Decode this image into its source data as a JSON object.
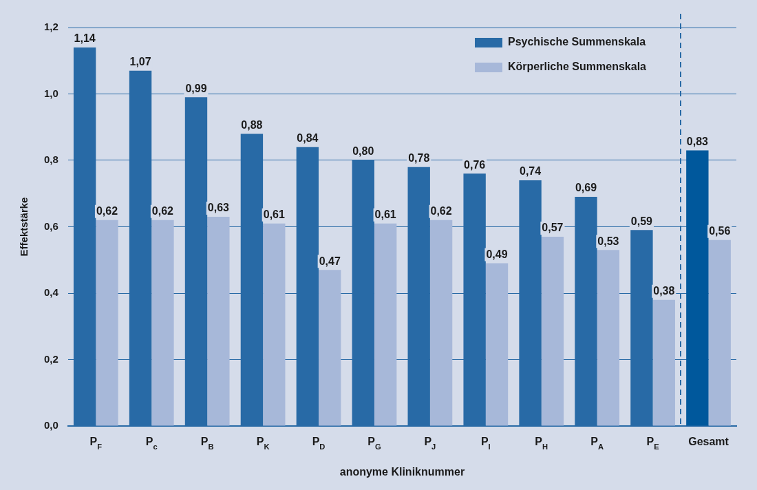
{
  "chart_data": {
    "type": "bar",
    "xlabel": "anonyme Kliniknummer",
    "ylabel": "Effektstärke",
    "categories": [
      "P$_{F}$",
      "P$_{c}$",
      "P$_{B}$",
      "P$_{K}$",
      "P$_{D}$",
      "P$_{G}$",
      "P$_{J}$",
      "P$_{I}$",
      "P$_{H}$",
      "P$_{A}$",
      "P$_{E}$",
      "Gesamt"
    ],
    "series": [
      {
        "name": "Psychische Summenskala",
        "color": "#286aa6",
        "colors": [
          "#286aa6",
          "#286aa6",
          "#286aa6",
          "#286aa6",
          "#286aa6",
          "#286aa6",
          "#286aa6",
          "#286aa6",
          "#286aa6",
          "#286aa6",
          "#286aa6",
          "#00589c"
        ],
        "values": [
          1.14,
          1.07,
          0.99,
          0.88,
          0.84,
          0.8,
          0.78,
          0.76,
          0.74,
          0.69,
          0.59,
          0.83
        ],
        "value_labels": [
          "1,14",
          "1,07",
          "0,99",
          "0,88",
          "0,84",
          "0,80",
          "0,78",
          "0,76",
          "0,74",
          "0,69",
          "0,59",
          "0,83"
        ]
      },
      {
        "name": "Körperliche Summenskala",
        "color": "#a7b8d9",
        "values": [
          0.62,
          0.62,
          0.63,
          0.61,
          0.47,
          0.61,
          0.62,
          0.49,
          0.57,
          0.53,
          0.38,
          0.56
        ],
        "value_labels": [
          "0,62",
          "0,62",
          "0,63",
          "0,61",
          "0,47",
          "0,61",
          "0,62",
          "0,49",
          "0,57",
          "0,53",
          "0,38",
          "0,56"
        ]
      }
    ],
    "ylim": [
      0,
      1.2
    ],
    "yticks": [
      {
        "value": 0,
        "label": "0,0"
      },
      {
        "value": 0.2,
        "label": "0,2"
      },
      {
        "value": 0.4,
        "label": "0,4"
      },
      {
        "value": 0.6,
        "label": "0,6"
      },
      {
        "value": 0.8,
        "label": "0,8"
      },
      {
        "value": 1.0,
        "label": "1,0"
      },
      {
        "value": 1.2,
        "label": "1,2"
      }
    ],
    "grid": "y",
    "legend": "top right"
  }
}
